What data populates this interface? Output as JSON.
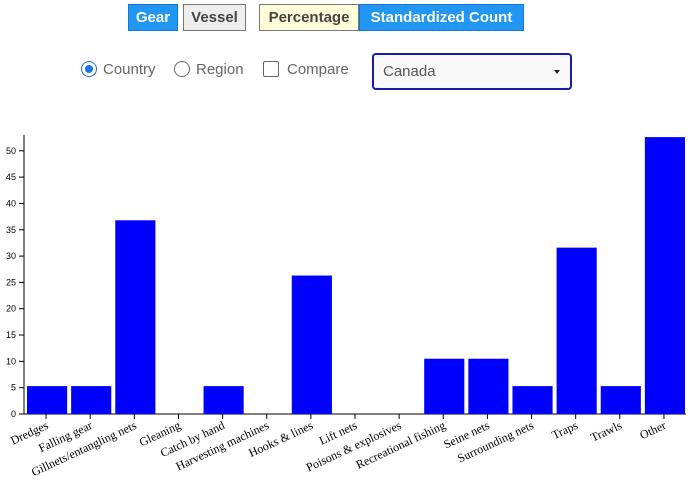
{
  "toolbar": {
    "gear_label": "Gear",
    "vessel_label": "Vessel",
    "percentage_label": "Percentage",
    "standardized_label": "Standardized Count"
  },
  "options": {
    "country_label": "Country",
    "region_label": "Region",
    "compare_label": "Compare",
    "country_selected": true,
    "region_selected": false,
    "compare_checked": false
  },
  "dropdown": {
    "selected": "Canada"
  },
  "colors": {
    "bar": "#0000ff",
    "button_active": "#2196f3"
  },
  "chart_data": {
    "type": "bar",
    "categories": [
      "Dredges",
      "Falling gear",
      "Gillnets/entangling nets",
      "Gleaning",
      "Catch by hand",
      "Harvesting machines",
      "Hooks & lines",
      "Lift nets",
      "Poisons & explosives",
      "Recreational fishing",
      "Seine nets",
      "Surrounding nets",
      "Traps",
      "Trawls",
      "Other"
    ],
    "values": [
      5.3,
      5.3,
      36.8,
      0,
      5.3,
      0,
      26.3,
      0,
      0,
      10.5,
      10.5,
      5.3,
      31.6,
      5.3,
      52.6
    ],
    "ylim": [
      0,
      53
    ],
    "yticks": [
      0,
      5,
      10,
      15,
      20,
      25,
      30,
      35,
      40,
      45,
      50
    ],
    "title": "",
    "xlabel": "",
    "ylabel": ""
  }
}
